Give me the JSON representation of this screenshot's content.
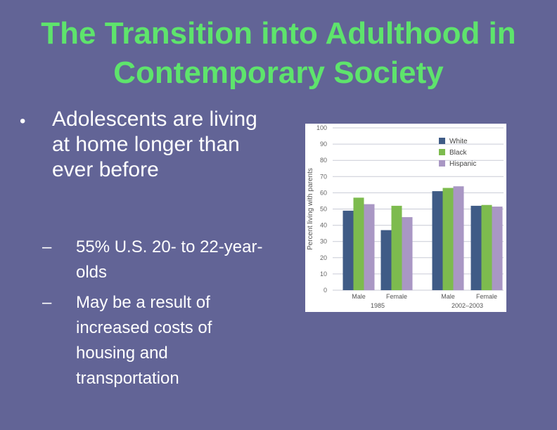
{
  "slide": {
    "title_line1": "The Transition into Adulthood in",
    "title_line2": "Contemporary Society",
    "bullet_marker": "•",
    "bullet": "Adolescents are living at home longer than ever before",
    "sub_marker": "–",
    "sub1": "55% U.S. 20- to 22-year-olds",
    "sub2": "May be a result of increased costs of housing and transportation"
  },
  "colors": {
    "White": "#3f5b86",
    "Black": "#7dbb4e",
    "Hispanic": "#a997c4"
  },
  "chart_data": {
    "type": "bar",
    "title": "",
    "xlabel": "",
    "ylabel": "Percent living with parents",
    "ylim": [
      0,
      100
    ],
    "yticks": [
      "0",
      "10",
      "20",
      "30",
      "40",
      "50",
      "60",
      "70",
      "80",
      "90",
      "100"
    ],
    "grid": true,
    "legend": "top-right",
    "categories": [
      "Male",
      "Female",
      "Male",
      "Female"
    ],
    "groups": [
      {
        "label": "1985",
        "categories": [
          "Male",
          "Female"
        ]
      },
      {
        "label": "2002–2003",
        "categories": [
          "Male",
          "Female"
        ]
      }
    ],
    "series": [
      {
        "name": "White",
        "values": [
          49,
          37,
          61,
          52
        ]
      },
      {
        "name": "Black",
        "values": [
          57,
          52,
          63,
          52.5
        ]
      },
      {
        "name": "Hispanic",
        "values": [
          53,
          45,
          64,
          51.5
        ]
      }
    ]
  }
}
